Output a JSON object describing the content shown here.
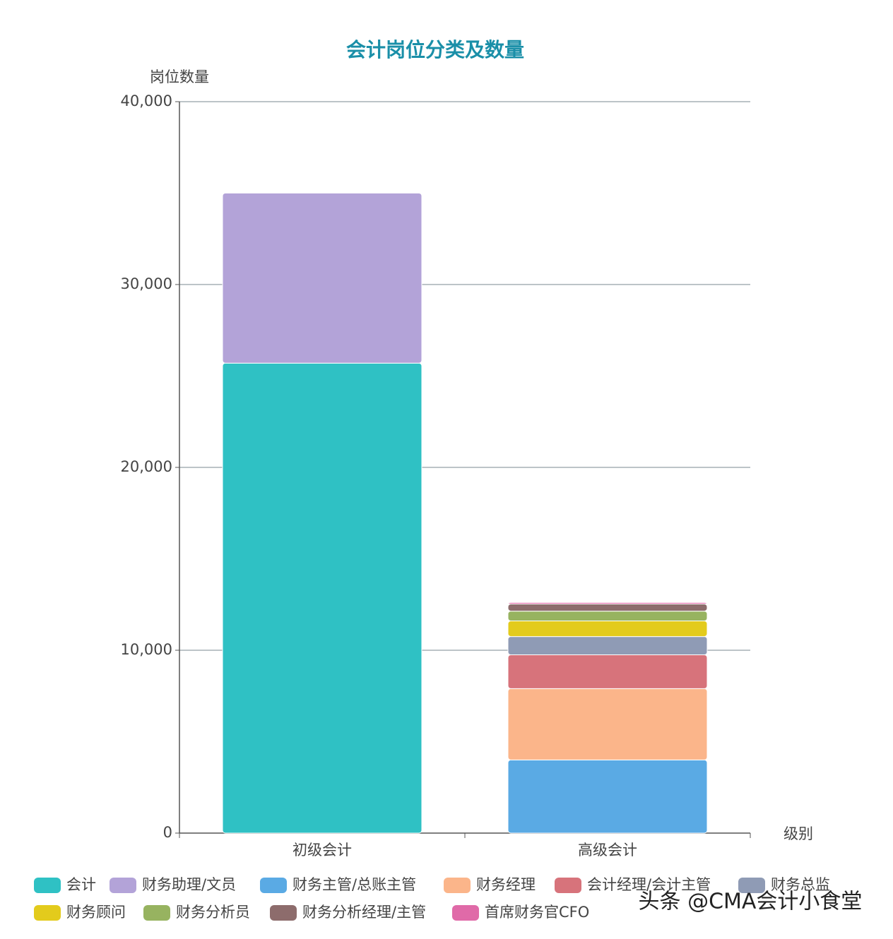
{
  "chart_data": {
    "type": "stacked_bar",
    "title": "会计岗位分类及数量",
    "y_label": "岗位数量",
    "x_label": "级别",
    "categories": [
      "初级会计",
      "高级会计"
    ],
    "series": [
      {
        "name": "会计",
        "color": "#2fc1c4",
        "values": [
          25700,
          0
        ]
      },
      {
        "name": "财务助理/文员",
        "color": "#b3a3d8",
        "values": [
          9300,
          0
        ]
      },
      {
        "name": "财务主管/总账主管",
        "color": "#5aaae4",
        "values": [
          0,
          4000
        ]
      },
      {
        "name": "财务经理",
        "color": "#fbb58a",
        "values": [
          0,
          3900
        ]
      },
      {
        "name": "会计经理/会计主管",
        "color": "#d7737b",
        "values": [
          0,
          1850
        ]
      },
      {
        "name": "财务总监",
        "color": "#8f9bb5",
        "values": [
          0,
          1000
        ]
      },
      {
        "name": "财务顾问",
        "color": "#e3cb1c",
        "values": [
          0,
          850
        ]
      },
      {
        "name": "财务分析员",
        "color": "#97b360",
        "values": [
          0,
          540
        ]
      },
      {
        "name": "财务分析经理/主管",
        "color": "#8d6c6c",
        "values": [
          0,
          390
        ]
      },
      {
        "name": "首席财务官CFO",
        "color": "#e06aa8",
        "values": [
          0,
          80
        ]
      }
    ],
    "ylim": [
      0,
      40000
    ],
    "yticks": [
      0,
      {
        "value": 10000,
        "label": "10,000"
      },
      {
        "value": 20000,
        "label": "20,000"
      },
      {
        "value": 30000,
        "label": "30,000"
      },
      {
        "value": 40000,
        "label": "40,000"
      }
    ],
    "grid": true
  },
  "watermark": "头条 @CMA会计小食堂"
}
